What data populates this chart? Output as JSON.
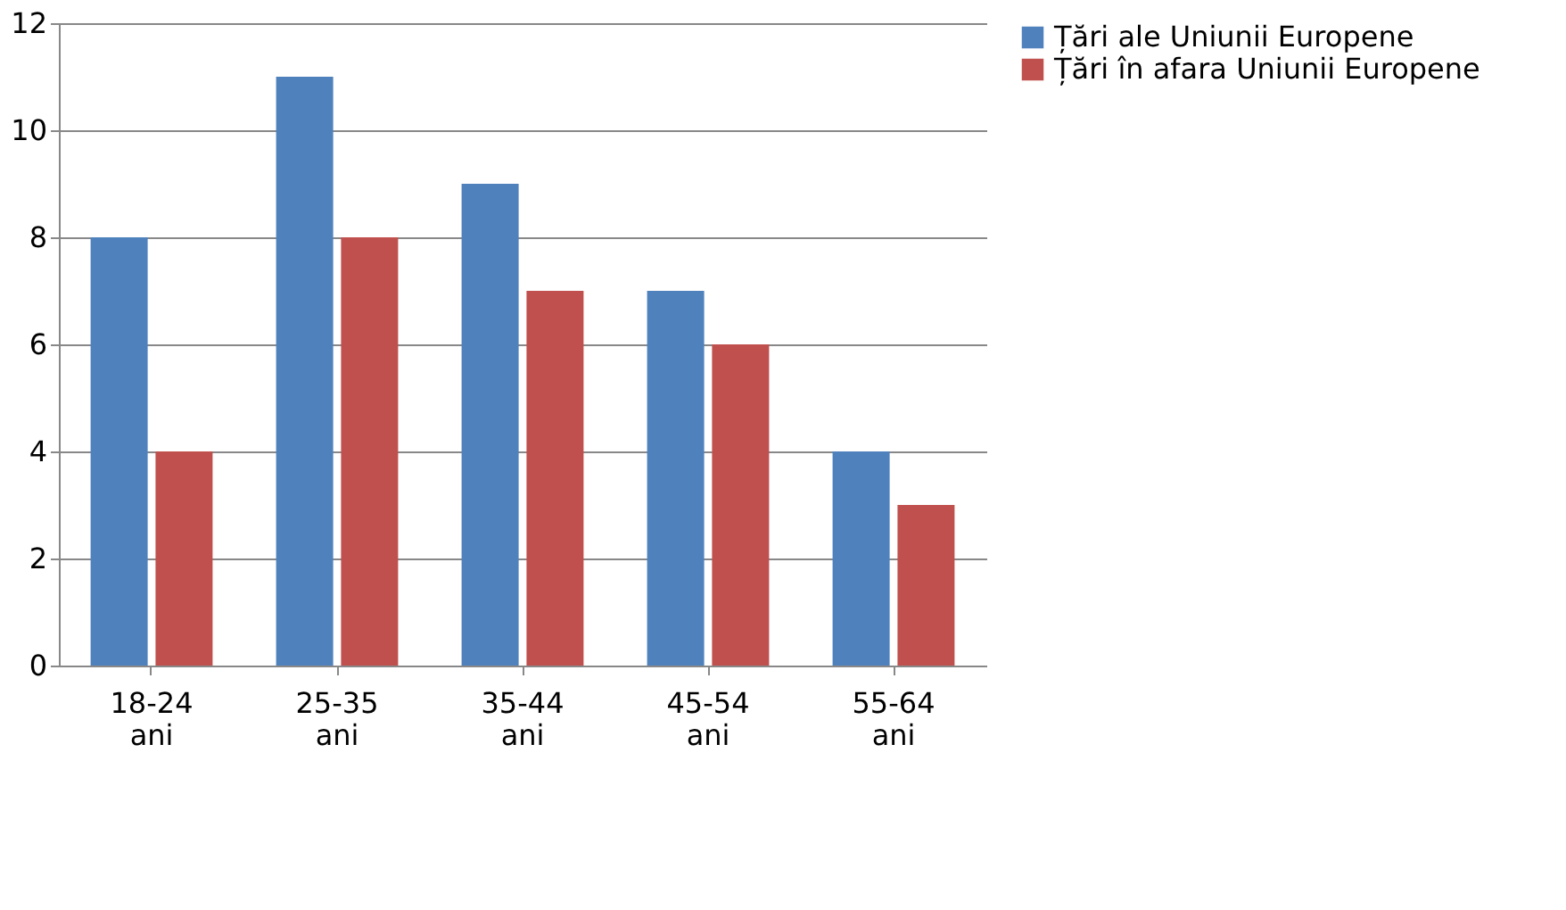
{
  "chart_data": {
    "type": "bar",
    "categories": [
      "18-24 ani",
      "25-35 ani",
      "35-44 ani",
      "45-54 ani",
      "55-64 ani"
    ],
    "series": [
      {
        "name": "Țări ale Uniunii Europene",
        "color": "#4f81bd",
        "values": [
          8,
          11,
          9,
          7,
          4
        ]
      },
      {
        "name": "Țări în afara Uniunii Europene",
        "color": "#c0504d",
        "values": [
          4,
          8,
          7,
          6,
          3
        ]
      }
    ],
    "ylim": [
      0,
      12
    ],
    "yticks": [
      0,
      2,
      4,
      6,
      8,
      10,
      12
    ],
    "grid": "y",
    "legend": "right"
  }
}
